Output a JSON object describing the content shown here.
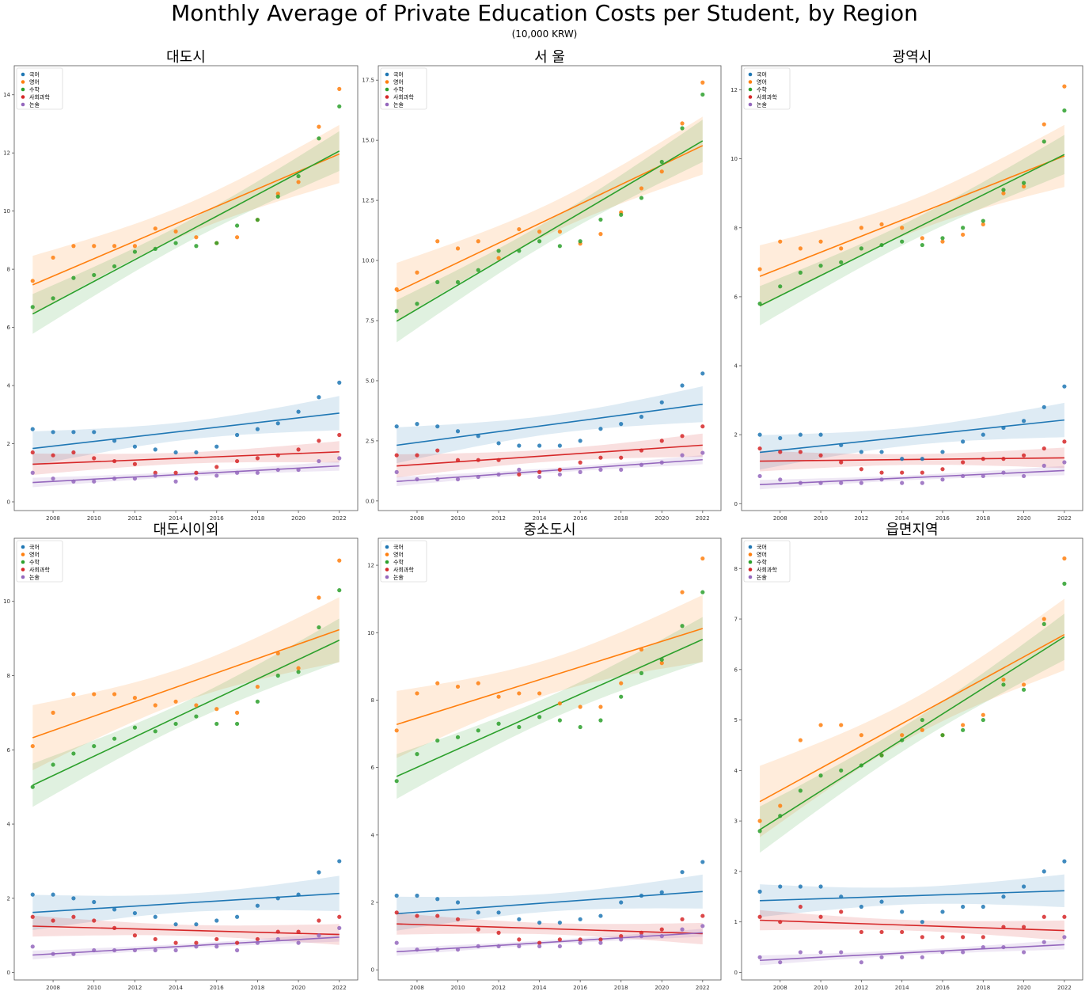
{
  "figure": {
    "title": "Monthly Average of Private Education Costs per Student, by Region",
    "subtitle": "(10,000 KRW)"
  },
  "colors": {
    "국어": "#1f77b4",
    "영어": "#ff7f0e",
    "수학": "#2ca02c",
    "사회과학": "#d62728",
    "논술": "#9467bd"
  },
  "chart_data": [
    {
      "type": "scatter",
      "title": "대도시",
      "x": [
        2007,
        2008,
        2009,
        2010,
        2011,
        2012,
        2013,
        2014,
        2015,
        2016,
        2017,
        2018,
        2019,
        2020,
        2021,
        2022
      ],
      "xlim": [
        2006.1,
        2022.9
      ],
      "xticks": [
        "2008",
        "2010",
        "2012",
        "2014",
        "2016",
        "2018",
        "2020",
        "2022"
      ],
      "ylim": [
        -0.3,
        15
      ],
      "yticks": [
        "0",
        "2",
        "4",
        "6",
        "8",
        "10",
        "12",
        "14"
      ],
      "legend": "top-left",
      "regression_lines": true,
      "confidence_bands": true,
      "series": [
        {
          "name": "국어",
          "values": [
            2.5,
            2.4,
            2.4,
            2.4,
            2.1,
            1.9,
            1.8,
            1.7,
            1.7,
            1.9,
            2.3,
            2.5,
            2.7,
            3.1,
            3.6,
            4.1
          ]
        },
        {
          "name": "영어",
          "values": [
            7.6,
            8.4,
            8.8,
            8.8,
            8.8,
            8.8,
            9.4,
            9.3,
            9.1,
            8.9,
            9.1,
            9.7,
            10.6,
            11.0,
            12.9,
            14.2
          ]
        },
        {
          "name": "수학",
          "values": [
            6.7,
            7.0,
            7.7,
            7.8,
            8.1,
            8.6,
            8.7,
            8.9,
            8.8,
            8.9,
            9.5,
            9.7,
            10.5,
            11.2,
            12.5,
            13.6
          ]
        },
        {
          "name": "사회과학",
          "values": [
            1.7,
            1.6,
            1.7,
            1.5,
            1.4,
            1.3,
            1.0,
            1.0,
            1.0,
            1.2,
            1.4,
            1.5,
            1.6,
            1.8,
            2.1,
            2.3
          ]
        },
        {
          "name": "논술",
          "values": [
            1.0,
            0.8,
            0.7,
            0.7,
            0.8,
            0.8,
            0.9,
            0.7,
            0.8,
            0.9,
            1.0,
            1.0,
            1.1,
            1.1,
            1.4,
            1.5
          ]
        }
      ]
    },
    {
      "type": "scatter",
      "title": "서  울",
      "x": [
        2007,
        2008,
        2009,
        2010,
        2011,
        2012,
        2013,
        2014,
        2015,
        2016,
        2017,
        2018,
        2019,
        2020,
        2021,
        2022
      ],
      "xlim": [
        2006.1,
        2022.9
      ],
      "xticks": [
        "2008",
        "2010",
        "2012",
        "2014",
        "2016",
        "2018",
        "2020",
        "2022"
      ],
      "ylim": [
        -0.4,
        18.1
      ],
      "yticks": [
        "0.0",
        "2.5",
        "5.0",
        "7.5",
        "10.0",
        "12.5",
        "15.0",
        "17.5"
      ],
      "legend": "top-left",
      "regression_lines": true,
      "confidence_bands": true,
      "series": [
        {
          "name": "국어",
          "values": [
            3.1,
            3.2,
            3.1,
            2.9,
            2.7,
            2.4,
            2.3,
            2.3,
            2.3,
            2.5,
            3.0,
            3.2,
            3.5,
            4.1,
            4.8,
            5.3
          ]
        },
        {
          "name": "영어",
          "values": [
            8.8,
            9.5,
            10.8,
            10.5,
            10.8,
            10.1,
            11.3,
            11.2,
            11.2,
            10.7,
            11.1,
            12.0,
            13.0,
            13.7,
            15.7,
            17.4
          ]
        },
        {
          "name": "수학",
          "values": [
            7.9,
            8.2,
            9.1,
            9.1,
            9.6,
            10.4,
            10.4,
            10.8,
            10.6,
            10.8,
            11.7,
            11.9,
            12.6,
            14.1,
            15.5,
            16.9
          ]
        },
        {
          "name": "사회과학",
          "values": [
            1.9,
            1.9,
            2.1,
            1.7,
            1.7,
            1.7,
            1.1,
            1.2,
            1.3,
            1.6,
            1.8,
            1.8,
            2.1,
            2.5,
            2.7,
            3.1
          ]
        },
        {
          "name": "논술",
          "values": [
            1.2,
            0.9,
            0.9,
            0.9,
            1.0,
            1.1,
            1.3,
            1.0,
            1.1,
            1.2,
            1.3,
            1.3,
            1.5,
            1.6,
            1.9,
            2.0
          ]
        }
      ]
    },
    {
      "type": "scatter",
      "title": "광역시",
      "x": [
        2007,
        2008,
        2009,
        2010,
        2011,
        2012,
        2013,
        2014,
        2015,
        2016,
        2017,
        2018,
        2019,
        2020,
        2021,
        2022
      ],
      "xlim": [
        2006.1,
        2022.9
      ],
      "xticks": [
        "2008",
        "2010",
        "2012",
        "2014",
        "2016",
        "2018",
        "2020",
        "2022"
      ],
      "ylim": [
        -0.2,
        12.7
      ],
      "yticks": [
        "0",
        "2",
        "4",
        "6",
        "8",
        "10",
        "12"
      ],
      "legend": "top-left",
      "regression_lines": true,
      "confidence_bands": true,
      "series": [
        {
          "name": "국어",
          "values": [
            2.0,
            1.9,
            2.0,
            2.0,
            1.7,
            1.5,
            1.5,
            1.3,
            1.3,
            1.5,
            1.8,
            2.0,
            2.2,
            2.4,
            2.8,
            3.4
          ]
        },
        {
          "name": "영어",
          "values": [
            6.8,
            7.6,
            7.4,
            7.6,
            7.4,
            8.0,
            8.1,
            8.0,
            7.7,
            7.6,
            7.8,
            8.1,
            9.0,
            9.2,
            11.0,
            12.1
          ]
        },
        {
          "name": "수학",
          "values": [
            5.8,
            6.3,
            6.7,
            6.9,
            7.0,
            7.4,
            7.5,
            7.6,
            7.5,
            7.7,
            8.0,
            8.2,
            9.1,
            9.3,
            10.5,
            11.4
          ]
        },
        {
          "name": "사회과학",
          "values": [
            1.6,
            1.5,
            1.5,
            1.4,
            1.2,
            1.0,
            0.9,
            0.9,
            0.9,
            1.0,
            1.2,
            1.3,
            1.3,
            1.4,
            1.6,
            1.8
          ]
        },
        {
          "name": "논술",
          "values": [
            0.8,
            0.7,
            0.6,
            0.6,
            0.6,
            0.6,
            0.7,
            0.6,
            0.6,
            0.7,
            0.8,
            0.8,
            0.9,
            0.8,
            1.1,
            1.2
          ]
        }
      ]
    },
    {
      "type": "scatter",
      "title": "대도시이외",
      "x": [
        2007,
        2008,
        2009,
        2010,
        2011,
        2012,
        2013,
        2014,
        2015,
        2016,
        2017,
        2018,
        2019,
        2020,
        2021,
        2022
      ],
      "xlim": [
        2006.1,
        2022.9
      ],
      "xticks": [
        "2008",
        "2010",
        "2012",
        "2014",
        "2016",
        "2018",
        "2020",
        "2022"
      ],
      "ylim": [
        -0.2,
        11.7
      ],
      "yticks": [
        "0",
        "2",
        "4",
        "6",
        "8",
        "10"
      ],
      "legend": "top-left",
      "regression_lines": true,
      "confidence_bands": true,
      "series": [
        {
          "name": "국어",
          "values": [
            2.1,
            2.1,
            2.0,
            1.9,
            1.7,
            1.6,
            1.5,
            1.3,
            1.3,
            1.4,
            1.5,
            1.8,
            2.0,
            2.1,
            2.7,
            3.0
          ]
        },
        {
          "name": "영어",
          "values": [
            6.1,
            7.0,
            7.5,
            7.5,
            7.5,
            7.4,
            7.2,
            7.3,
            7.2,
            7.1,
            7.0,
            7.7,
            8.6,
            8.2,
            10.1,
            11.1
          ]
        },
        {
          "name": "수학",
          "values": [
            5.0,
            5.6,
            5.9,
            6.1,
            6.3,
            6.6,
            6.5,
            6.7,
            6.9,
            6.7,
            6.7,
            7.3,
            8.0,
            8.1,
            9.3,
            10.3
          ]
        },
        {
          "name": "사회과학",
          "values": [
            1.5,
            1.4,
            1.5,
            1.4,
            1.2,
            1.0,
            0.9,
            0.8,
            0.8,
            0.9,
            0.8,
            0.9,
            1.1,
            1.1,
            1.4,
            1.5
          ]
        },
        {
          "name": "논술",
          "values": [
            0.7,
            0.5,
            0.5,
            0.6,
            0.6,
            0.6,
            0.6,
            0.6,
            0.7,
            0.7,
            0.6,
            0.8,
            0.9,
            0.8,
            1.0,
            1.2
          ]
        }
      ]
    },
    {
      "type": "scatter",
      "title": "중소도시",
      "x": [
        2007,
        2008,
        2009,
        2010,
        2011,
        2012,
        2013,
        2014,
        2015,
        2016,
        2017,
        2018,
        2019,
        2020,
        2021,
        2022
      ],
      "xlim": [
        2006.1,
        2022.9
      ],
      "xticks": [
        "2008",
        "2010",
        "2012",
        "2014",
        "2016",
        "2018",
        "2020",
        "2022"
      ],
      "ylim": [
        -0.3,
        12.8
      ],
      "yticks": [
        "0",
        "2",
        "4",
        "6",
        "8",
        "10",
        "12"
      ],
      "legend": "top-left",
      "regression_lines": true,
      "confidence_bands": true,
      "series": [
        {
          "name": "국어",
          "values": [
            2.2,
            2.2,
            2.1,
            2.0,
            1.7,
            1.7,
            1.5,
            1.4,
            1.4,
            1.5,
            1.6,
            2.0,
            2.2,
            2.3,
            2.9,
            3.2
          ]
        },
        {
          "name": "영어",
          "values": [
            7.1,
            8.2,
            8.5,
            8.4,
            8.5,
            8.1,
            8.2,
            8.2,
            7.9,
            7.8,
            7.8,
            8.5,
            9.5,
            9.1,
            11.2,
            12.2
          ]
        },
        {
          "name": "수학",
          "values": [
            5.6,
            6.4,
            6.8,
            6.9,
            7.1,
            7.3,
            7.2,
            7.5,
            7.4,
            7.2,
            7.4,
            8.1,
            8.8,
            9.2,
            10.2,
            11.2
          ]
        },
        {
          "name": "사회과학",
          "values": [
            1.7,
            1.6,
            1.6,
            1.5,
            1.2,
            1.1,
            0.9,
            0.8,
            0.9,
            0.9,
            0.9,
            1.0,
            1.1,
            1.2,
            1.5,
            1.6
          ]
        },
        {
          "name": "논술",
          "values": [
            0.8,
            0.6,
            0.6,
            0.6,
            0.7,
            0.7,
            0.7,
            0.7,
            0.7,
            0.8,
            0.8,
            0.9,
            1.0,
            1.0,
            1.2,
            1.3
          ]
        }
      ]
    },
    {
      "type": "scatter",
      "title": "읍면지역",
      "x": [
        2007,
        2008,
        2009,
        2010,
        2011,
        2012,
        2013,
        2014,
        2015,
        2016,
        2017,
        2018,
        2019,
        2020,
        2021,
        2022
      ],
      "xlim": [
        2006.1,
        2022.9
      ],
      "xticks": [
        "2008",
        "2010",
        "2012",
        "2014",
        "2016",
        "2018",
        "2020",
        "2022"
      ],
      "ylim": [
        -0.15,
        8.6
      ],
      "yticks": [
        "0",
        "1",
        "2",
        "3",
        "4",
        "5",
        "6",
        "7",
        "8"
      ],
      "legend": "top-left",
      "regression_lines": true,
      "confidence_bands": true,
      "series": [
        {
          "name": "국어",
          "values": [
            1.6,
            1.7,
            1.7,
            1.7,
            1.5,
            1.3,
            1.4,
            1.2,
            1.0,
            1.2,
            1.3,
            1.3,
            1.5,
            1.7,
            2.0,
            2.2
          ]
        },
        {
          "name": "영어",
          "values": [
            3.0,
            3.3,
            4.6,
            4.9,
            4.9,
            4.7,
            4.3,
            4.7,
            4.8,
            4.7,
            4.9,
            5.1,
            5.8,
            5.7,
            7.0,
            8.2
          ]
        },
        {
          "name": "수학",
          "values": [
            2.8,
            3.1,
            3.6,
            3.9,
            4.0,
            4.1,
            4.3,
            4.6,
            5.0,
            4.7,
            4.8,
            5.0,
            5.7,
            5.6,
            6.9,
            7.7
          ]
        },
        {
          "name": "사회과학",
          "values": [
            1.1,
            1.0,
            1.3,
            1.1,
            1.2,
            0.8,
            0.8,
            0.8,
            0.7,
            0.7,
            0.7,
            0.7,
            0.9,
            0.9,
            1.1,
            1.1
          ]
        },
        {
          "name": "논술",
          "values": [
            0.3,
            0.2,
            0.4,
            0.4,
            0.4,
            0.2,
            0.3,
            0.3,
            0.3,
            0.4,
            0.4,
            0.5,
            0.5,
            0.4,
            0.6,
            0.7
          ]
        }
      ]
    }
  ]
}
